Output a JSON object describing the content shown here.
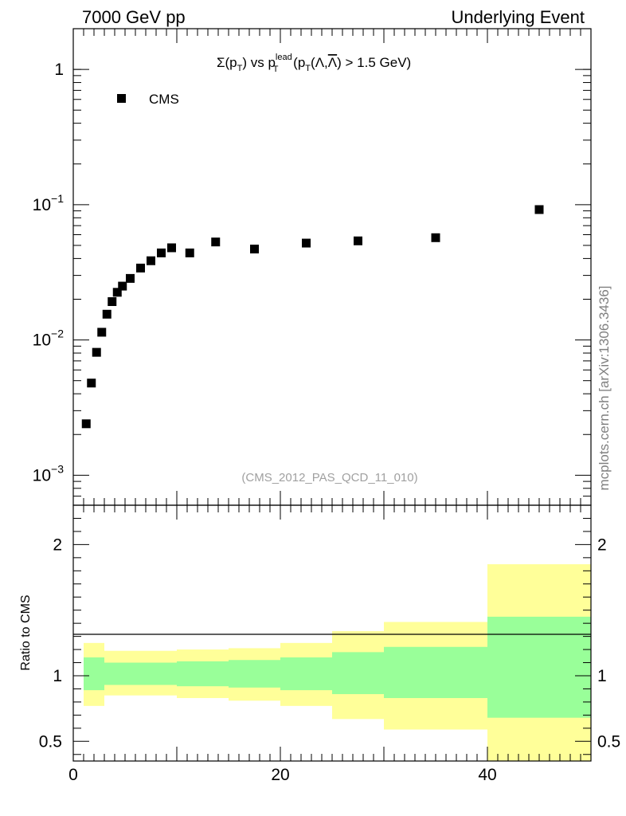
{
  "header": {
    "left": "7000 GeV pp",
    "right": "Underlying Event"
  },
  "title": {
    "sigma": "Σ(p",
    "t_sub": "T",
    "mid": ") vs p",
    "lead_sup": "lead",
    "t_sub2": "T",
    "open": " (p",
    "t_sub3": "T",
    "lam": "(Λ,",
    "lambar": "Λ",
    "tail": ") > 1.5 GeV)"
  },
  "legend": {
    "label": "CMS",
    "marker_color": "#000000"
  },
  "analysis_id": "(CMS_2012_PAS_QCD_11_010)",
  "side_label": "mcplots.cern.ch [arXiv:1306.3436]",
  "ratio_ylabel": "Ratio to CMS",
  "colors": {
    "band_inner": "#99ff99",
    "band_outer": "#ffff99",
    "marker": "#000000"
  },
  "chart_data": [
    {
      "type": "scatter",
      "yscale": "log",
      "xlim": [
        0,
        50
      ],
      "ylim": [
        0.0006,
        2.0
      ],
      "y_tick_labels": [
        {
          "value": 1,
          "label": "1"
        },
        {
          "value": 0.1,
          "label": "10",
          "exp": "−1"
        },
        {
          "value": 0.01,
          "label": "10",
          "exp": "−2"
        },
        {
          "value": 0.001,
          "label": "10",
          "exp": "−3"
        }
      ],
      "series": [
        {
          "name": "CMS",
          "x": [
            1.25,
            1.75,
            2.25,
            2.75,
            3.25,
            3.75,
            4.25,
            4.75,
            5.5,
            6.5,
            7.5,
            8.5,
            9.5,
            11.25,
            13.75,
            17.5,
            22.5,
            27.5,
            35,
            45
          ],
          "y": [
            0.0024,
            0.0048,
            0.0081,
            0.0114,
            0.0155,
            0.0192,
            0.0225,
            0.025,
            0.0285,
            0.034,
            0.0385,
            0.044,
            0.048,
            0.044,
            0.053,
            0.047,
            0.052,
            0.054,
            0.057,
            0.092
          ]
        }
      ]
    },
    {
      "type": "area",
      "ylim": [
        0.35,
        2.3
      ],
      "y_ticks": [
        0.5,
        1,
        2
      ],
      "y_tick_labels": [
        "0.5",
        "1",
        "2"
      ],
      "x_ticks": [
        0,
        20,
        40
      ],
      "x_tick_labels": [
        "0",
        "20",
        "40"
      ],
      "bins": [
        {
          "x0": 1,
          "x1": 3,
          "inner": [
            0.89,
            1.14
          ],
          "outer": [
            0.77,
            1.25
          ]
        },
        {
          "x0": 3,
          "x1": 10,
          "inner": [
            0.93,
            1.1
          ],
          "outer": [
            0.85,
            1.19
          ]
        },
        {
          "x0": 10,
          "x1": 15,
          "inner": [
            0.92,
            1.11
          ],
          "outer": [
            0.83,
            1.2
          ]
        },
        {
          "x0": 15,
          "x1": 20,
          "inner": [
            0.91,
            1.12
          ],
          "outer": [
            0.81,
            1.21
          ]
        },
        {
          "x0": 20,
          "x1": 25,
          "inner": [
            0.89,
            1.14
          ],
          "outer": [
            0.77,
            1.25
          ]
        },
        {
          "x0": 25,
          "x1": 30,
          "inner": [
            0.86,
            1.18
          ],
          "outer": [
            0.67,
            1.34
          ]
        },
        {
          "x0": 30,
          "x1": 40,
          "inner": [
            0.83,
            1.22
          ],
          "outer": [
            0.59,
            1.41
          ]
        },
        {
          "x0": 40,
          "x1": 50,
          "inner": [
            0.68,
            1.45
          ],
          "outer": [
            0.35,
            1.85
          ]
        }
      ]
    }
  ]
}
